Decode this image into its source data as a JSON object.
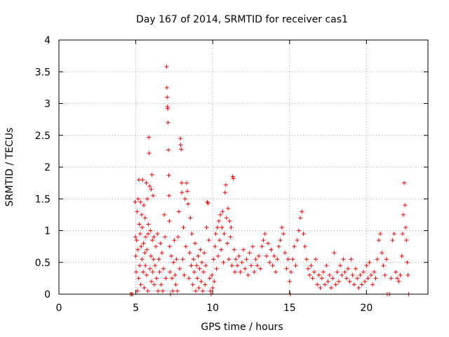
{
  "chart_data": {
    "type": "scatter",
    "title": "Day 167 of 2014, SRMTID for receiver cas1",
    "xlabel": "GPS time / hours",
    "ylabel": "SRMTID / TECUs",
    "xlim": [
      0,
      24
    ],
    "ylim": [
      0,
      4
    ],
    "grid": true,
    "marker": "+",
    "color": "#ff0000",
    "x_ticks": [
      {
        "value": 0,
        "label": "0"
      },
      {
        "value": 5,
        "label": "5"
      },
      {
        "value": 10,
        "label": "10"
      },
      {
        "value": 15,
        "label": "15"
      },
      {
        "value": 20,
        "label": "20"
      }
    ],
    "y_ticks": [
      {
        "value": 0,
        "label": "0"
      },
      {
        "value": 0.5,
        "label": "0.5"
      },
      {
        "value": 1,
        "label": "1"
      },
      {
        "value": 1.5,
        "label": "1.5"
      },
      {
        "value": 2,
        "label": "2"
      },
      {
        "value": 2.5,
        "label": "2.5"
      },
      {
        "value": 3,
        "label": "3"
      },
      {
        "value": 3.5,
        "label": "3.5"
      },
      {
        "value": 4,
        "label": "4"
      }
    ],
    "series": [
      {
        "name": "cas1",
        "points": [
          [
            4.65,
            0.0
          ],
          [
            4.72,
            0.0
          ],
          [
            4.8,
            0.0
          ],
          [
            4.95,
            1.45
          ],
          [
            4.98,
            0.9
          ],
          [
            5.0,
            0.6
          ],
          [
            5.02,
            0.35
          ],
          [
            5.05,
            0.85
          ],
          [
            5.08,
            1.3
          ],
          [
            5.1,
            0.05
          ],
          [
            5.12,
            0.7
          ],
          [
            5.15,
            1.5
          ],
          [
            5.18,
            0.25
          ],
          [
            5.2,
            1.8
          ],
          [
            5.22,
            1.1
          ],
          [
            5.25,
            0.45
          ],
          [
            5.28,
            0.95
          ],
          [
            5.3,
            1.45
          ],
          [
            5.32,
            0.15
          ],
          [
            5.35,
            0.75
          ],
          [
            5.38,
            1.25
          ],
          [
            5.4,
            0.55
          ],
          [
            5.42,
            1.05
          ],
          [
            5.45,
            1.8
          ],
          [
            5.48,
            0.35
          ],
          [
            5.5,
            0.8
          ],
          [
            5.52,
            1.4
          ],
          [
            5.55,
            0.1
          ],
          [
            5.58,
            0.65
          ],
          [
            5.6,
            1.2
          ],
          [
            5.62,
            0.45
          ],
          [
            5.65,
            0.9
          ],
          [
            5.68,
            1.75
          ],
          [
            5.7,
            0.3
          ],
          [
            5.72,
            0.7
          ],
          [
            5.75,
            1.5
          ],
          [
            5.78,
            0.05
          ],
          [
            5.8,
            0.95
          ],
          [
            5.82,
            1.1
          ],
          [
            5.85,
            2.47
          ],
          [
            5.87,
            2.22
          ],
          [
            5.9,
            1.7
          ],
          [
            5.92,
            0.4
          ],
          [
            5.95,
            1.0
          ],
          [
            5.98,
            0.6
          ],
          [
            6.0,
            1.65
          ],
          [
            6.02,
            0.2
          ],
          [
            6.05,
            1.88
          ],
          [
            6.08,
            0.85
          ],
          [
            6.1,
            0.35
          ],
          [
            6.12,
            1.55
          ],
          [
            6.15,
            0.55
          ],
          [
            6.18,
            0.9
          ],
          [
            6.2,
            0.15
          ],
          [
            6.25,
            0.45
          ],
          [
            6.3,
            0.75
          ],
          [
            6.35,
            0.25
          ],
          [
            6.4,
            0.95
          ],
          [
            6.45,
            0.05
          ],
          [
            6.5,
            0.55
          ],
          [
            6.55,
            0.35
          ],
          [
            6.6,
            0.8
          ],
          [
            6.65,
            0.15
          ],
          [
            6.7,
            0.65
          ],
          [
            6.75,
            0.05
          ],
          [
            6.8,
            0.4
          ],
          [
            6.85,
            1.25
          ],
          [
            6.9,
            0.9
          ],
          [
            6.95,
            0.25
          ],
          [
            7.0,
            3.58
          ],
          [
            7.02,
            3.25
          ],
          [
            7.04,
            3.1
          ],
          [
            7.06,
            2.95
          ],
          [
            7.08,
            2.92
          ],
          [
            7.1,
            2.7
          ],
          [
            7.12,
            2.27
          ],
          [
            7.14,
            1.87
          ],
          [
            7.16,
            1.55
          ],
          [
            7.18,
            1.15
          ],
          [
            7.2,
            0.75
          ],
          [
            7.22,
            0.35
          ],
          [
            7.25,
            0.0
          ],
          [
            7.3,
            0.6
          ],
          [
            7.35,
            0.25
          ],
          [
            7.4,
            0.05
          ],
          [
            7.45,
            0.5
          ],
          [
            7.5,
            0.85
          ],
          [
            7.55,
            0.3
          ],
          [
            7.6,
            0.15
          ],
          [
            7.65,
            0.55
          ],
          [
            7.7,
            0.05
          ],
          [
            7.75,
            0.9
          ],
          [
            7.8,
            1.3
          ],
          [
            7.85,
            0.4
          ],
          [
            7.9,
            2.45
          ],
          [
            7.92,
            2.35
          ],
          [
            7.95,
            2.28
          ],
          [
            7.98,
            1.75
          ],
          [
            8.0,
            1.6
          ],
          [
            8.05,
            0.55
          ],
          [
            8.1,
            1.05
          ],
          [
            8.15,
            0.3
          ],
          [
            8.2,
            1.5
          ],
          [
            8.25,
            0.75
          ],
          [
            8.3,
            1.75
          ],
          [
            8.35,
            1.62
          ],
          [
            8.4,
            1.42
          ],
          [
            8.45,
            0.25
          ],
          [
            8.5,
            0.65
          ],
          [
            8.55,
            1.2
          ],
          [
            8.6,
            0.45
          ],
          [
            8.65,
            0.95
          ],
          [
            8.7,
            0.15
          ],
          [
            8.75,
            0.55
          ],
          [
            8.8,
            0.35
          ],
          [
            8.85,
            0.8
          ],
          [
            8.9,
            0.05
          ],
          [
            8.95,
            0.45
          ],
          [
            9.0,
            0.25
          ],
          [
            9.05,
            0.6
          ],
          [
            9.1,
            0.1
          ],
          [
            9.15,
            0.4
          ],
          [
            9.2,
            0.7
          ],
          [
            9.25,
            0.2
          ],
          [
            9.3,
            0.5
          ],
          [
            9.35,
            0.05
          ],
          [
            9.4,
            0.35
          ],
          [
            9.45,
            0.65
          ],
          [
            9.5,
            0.15
          ],
          [
            9.55,
            0.45
          ],
          [
            9.6,
            1.05
          ],
          [
            9.65,
            1.45
          ],
          [
            9.7,
            1.43
          ],
          [
            9.75,
            0.85
          ],
          [
            9.8,
            0.25
          ],
          [
            9.85,
            0.05
          ],
          [
            9.9,
            0.0
          ],
          [
            9.95,
            0.3
          ],
          [
            10.0,
            0.1
          ],
          [
            10.05,
            0.55
          ],
          [
            10.1,
            0.2
          ],
          [
            10.15,
            0.75
          ],
          [
            10.2,
            0.95
          ],
          [
            10.25,
            0.4
          ],
          [
            10.3,
            1.05
          ],
          [
            10.35,
            0.6
          ],
          [
            10.4,
            1.15
          ],
          [
            10.45,
            0.85
          ],
          [
            10.5,
            1.25
          ],
          [
            10.55,
            0.7
          ],
          [
            10.6,
            1.05
          ],
          [
            10.65,
            1.3
          ],
          [
            10.7,
            0.5
          ],
          [
            10.75,
            0.95
          ],
          [
            10.8,
            1.6
          ],
          [
            10.85,
            1.72
          ],
          [
            10.9,
            1.2
          ],
          [
            10.95,
            0.8
          ],
          [
            11.0,
            1.35
          ],
          [
            11.05,
            0.55
          ],
          [
            11.1,
            1.15
          ],
          [
            11.15,
            0.9
          ],
          [
            11.2,
            1.05
          ],
          [
            11.25,
            0.45
          ],
          [
            11.3,
            1.85
          ],
          [
            11.35,
            1.82
          ],
          [
            11.4,
            0.7
          ],
          [
            11.45,
            0.35
          ],
          [
            11.5,
            0.55
          ],
          [
            11.6,
            0.45
          ],
          [
            11.7,
            0.6
          ],
          [
            11.8,
            0.35
          ],
          [
            11.9,
            0.5
          ],
          [
            12.0,
            0.7
          ],
          [
            12.1,
            0.4
          ],
          [
            12.2,
            0.55
          ],
          [
            12.3,
            0.3
          ],
          [
            12.4,
            0.65
          ],
          [
            12.5,
            0.45
          ],
          [
            12.6,
            0.75
          ],
          [
            12.7,
            0.35
          ],
          [
            12.8,
            0.55
          ],
          [
            12.9,
            0.45
          ],
          [
            13.0,
            0.6
          ],
          [
            13.1,
            0.4
          ],
          [
            13.2,
            0.75
          ],
          [
            13.3,
            0.85
          ],
          [
            13.4,
            0.95
          ],
          [
            13.5,
            0.6
          ],
          [
            13.6,
            0.8
          ],
          [
            13.7,
            0.5
          ],
          [
            13.8,
            0.7
          ],
          [
            13.9,
            0.45
          ],
          [
            14.0,
            0.6
          ],
          [
            14.1,
            0.35
          ],
          [
            14.2,
            0.55
          ],
          [
            14.3,
            0.75
          ],
          [
            14.4,
            0.85
          ],
          [
            14.5,
            1.05
          ],
          [
            14.6,
            0.95
          ],
          [
            14.7,
            0.65
          ],
          [
            14.8,
            0.4
          ],
          [
            14.9,
            0.55
          ],
          [
            15.0,
            0.2
          ],
          [
            15.05,
            0.0
          ],
          [
            15.1,
            0.35
          ],
          [
            15.2,
            0.55
          ],
          [
            15.3,
            0.75
          ],
          [
            15.4,
            0.45
          ],
          [
            15.5,
            0.85
          ],
          [
            15.6,
            1.0
          ],
          [
            15.7,
            1.2
          ],
          [
            15.8,
            1.3
          ],
          [
            15.9,
            0.95
          ],
          [
            16.0,
            0.75
          ],
          [
            16.1,
            0.55
          ],
          [
            16.2,
            0.4
          ],
          [
            16.3,
            0.3
          ],
          [
            16.4,
            0.45
          ],
          [
            16.5,
            0.25
          ],
          [
            16.6,
            0.35
          ],
          [
            16.7,
            0.55
          ],
          [
            16.8,
            0.15
          ],
          [
            16.9,
            0.3
          ],
          [
            17.0,
            0.1
          ],
          [
            17.1,
            0.25
          ],
          [
            17.2,
            0.35
          ],
          [
            17.3,
            0.15
          ],
          [
            17.4,
            0.45
          ],
          [
            17.5,
            0.2
          ],
          [
            17.6,
            0.3
          ],
          [
            17.7,
            0.1
          ],
          [
            17.8,
            0.25
          ],
          [
            17.9,
            0.65
          ],
          [
            18.0,
            0.15
          ],
          [
            18.1,
            0.35
          ],
          [
            18.2,
            0.2
          ],
          [
            18.3,
            0.45
          ],
          [
            18.4,
            0.3
          ],
          [
            18.5,
            0.55
          ],
          [
            18.6,
            0.35
          ],
          [
            18.7,
            0.25
          ],
          [
            18.8,
            0.4
          ],
          [
            18.9,
            0.2
          ],
          [
            19.0,
            0.55
          ],
          [
            19.1,
            0.3
          ],
          [
            19.2,
            0.15
          ],
          [
            19.3,
            0.4
          ],
          [
            19.4,
            0.25
          ],
          [
            19.5,
            0.1
          ],
          [
            19.6,
            0.3
          ],
          [
            19.7,
            0.15
          ],
          [
            19.8,
            0.35
          ],
          [
            19.9,
            0.2
          ],
          [
            20.0,
            0.45
          ],
          [
            20.1,
            0.25
          ],
          [
            20.2,
            0.5
          ],
          [
            20.3,
            0.3
          ],
          [
            20.4,
            0.15
          ],
          [
            20.5,
            0.35
          ],
          [
            20.6,
            0.25
          ],
          [
            20.7,
            0.55
          ],
          [
            20.8,
            0.85
          ],
          [
            20.9,
            0.95
          ],
          [
            21.0,
            0.65
          ],
          [
            21.1,
            0.45
          ],
          [
            21.2,
            0.3
          ],
          [
            21.3,
            0.55
          ],
          [
            21.35,
            0.0
          ],
          [
            21.5,
            0.0
          ],
          [
            21.6,
            0.25
          ],
          [
            21.7,
            0.85
          ],
          [
            21.8,
            0.95
          ],
          [
            21.9,
            0.35
          ],
          [
            22.0,
            0.25
          ],
          [
            22.1,
            0.2
          ],
          [
            22.2,
            0.3
          ],
          [
            22.3,
            0.6
          ],
          [
            22.35,
            0.95
          ],
          [
            22.4,
            1.25
          ],
          [
            22.45,
            1.75
          ],
          [
            22.5,
            1.4
          ],
          [
            22.55,
            1.05
          ],
          [
            22.6,
            0.85
          ],
          [
            22.65,
            0.5
          ],
          [
            22.7,
            0.3
          ],
          [
            22.75,
            0.0
          ]
        ]
      }
    ]
  }
}
